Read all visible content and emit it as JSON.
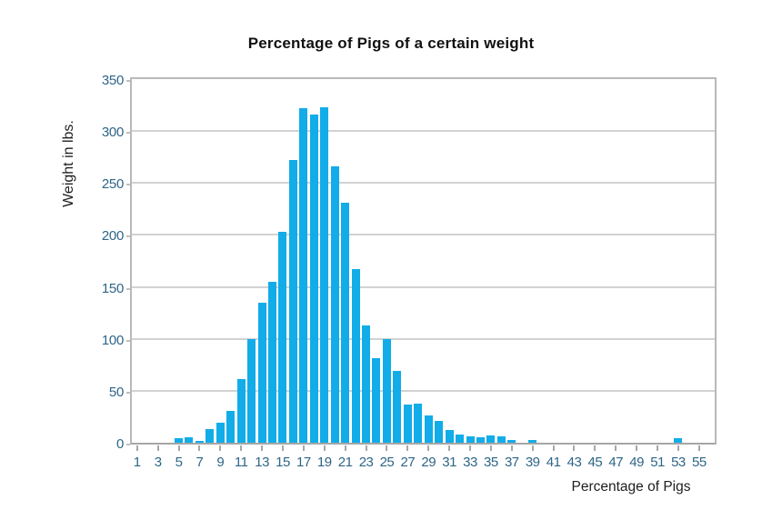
{
  "chart_data": {
    "type": "bar",
    "title": "Percentage of Pigs of a certain weight",
    "xlabel": "Percentage of Pigs",
    "ylabel": "Weight in lbs.",
    "x": [
      1,
      2,
      3,
      4,
      5,
      6,
      7,
      8,
      9,
      10,
      11,
      12,
      13,
      14,
      15,
      16,
      17,
      18,
      19,
      20,
      21,
      22,
      23,
      24,
      25,
      26,
      27,
      28,
      29,
      30,
      31,
      32,
      33,
      34,
      35,
      36,
      37,
      38,
      39,
      40,
      41,
      42,
      43,
      44,
      45,
      46,
      47,
      48,
      49,
      50,
      51,
      52,
      53,
      54,
      55,
      56
    ],
    "values": [
      0,
      0,
      0,
      0,
      4,
      5,
      2,
      13,
      19,
      31,
      61,
      100,
      135,
      155,
      203,
      272,
      322,
      316,
      323,
      266,
      231,
      167,
      113,
      81,
      100,
      69,
      37,
      38,
      26,
      21,
      12,
      8,
      6,
      5,
      7,
      6,
      3,
      0,
      3,
      0,
      0,
      0,
      0,
      0,
      0,
      0,
      0,
      0,
      0,
      0,
      0,
      0,
      4,
      0,
      0,
      0
    ],
    "x_tick_labels": [
      "1",
      "3",
      "5",
      "7",
      "9",
      "11",
      "13",
      "15",
      "17",
      "19",
      "21",
      "23",
      "25",
      "27",
      "29",
      "31",
      "33",
      "35",
      "37",
      "39",
      "41",
      "43",
      "45",
      "47",
      "49",
      "51",
      "53",
      "55"
    ],
    "y_ticks": [
      0,
      50,
      100,
      150,
      200,
      250,
      300,
      350
    ],
    "ylim": [
      0,
      350
    ],
    "grid": true,
    "legend": "none",
    "colors": {
      "bar": "#12ace9",
      "tick_text": "#2e6687",
      "gridline": "#d2d2d2",
      "plot_border": "#b9b9b9",
      "title_text": "#111111",
      "axis_title_text": "#1e1e1e"
    }
  }
}
